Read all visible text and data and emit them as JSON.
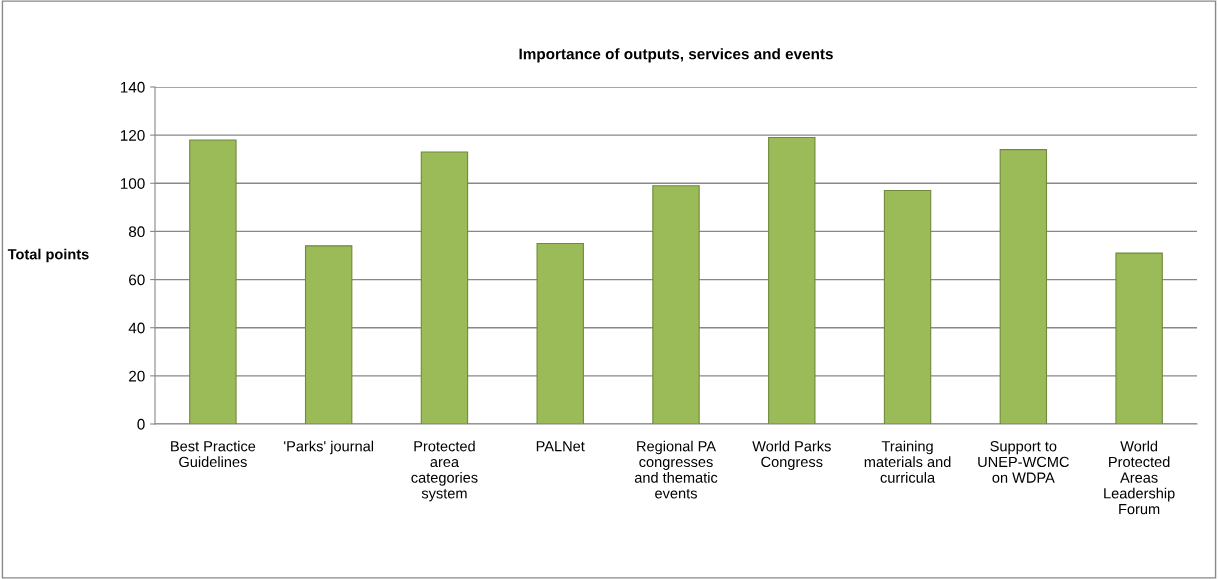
{
  "chart_data": {
    "type": "bar",
    "title": "Importance of outputs, services and events",
    "ylabel": "Total points",
    "categories": [
      "Best Practice\nGuidelines",
      "'Parks' journal",
      "Protected\narea\ncategories\nsystem",
      "PALNet",
      "Regional PA\ncongresses\nand thematic\nevents",
      "World Parks\nCongress",
      "Training\nmaterials and\ncurricula",
      "Support to\nUNEP-WCMC\non WDPA",
      "World\nProtected\nAreas\nLeadership\nForum"
    ],
    "values": [
      118,
      74,
      113,
      75,
      99,
      119,
      97,
      114,
      71
    ],
    "color": "#9bbb59",
    "ylim": [
      0,
      140
    ],
    "yticks": [
      0,
      20,
      40,
      60,
      80,
      100,
      120,
      140
    ],
    "grid": "y",
    "legend": false
  }
}
